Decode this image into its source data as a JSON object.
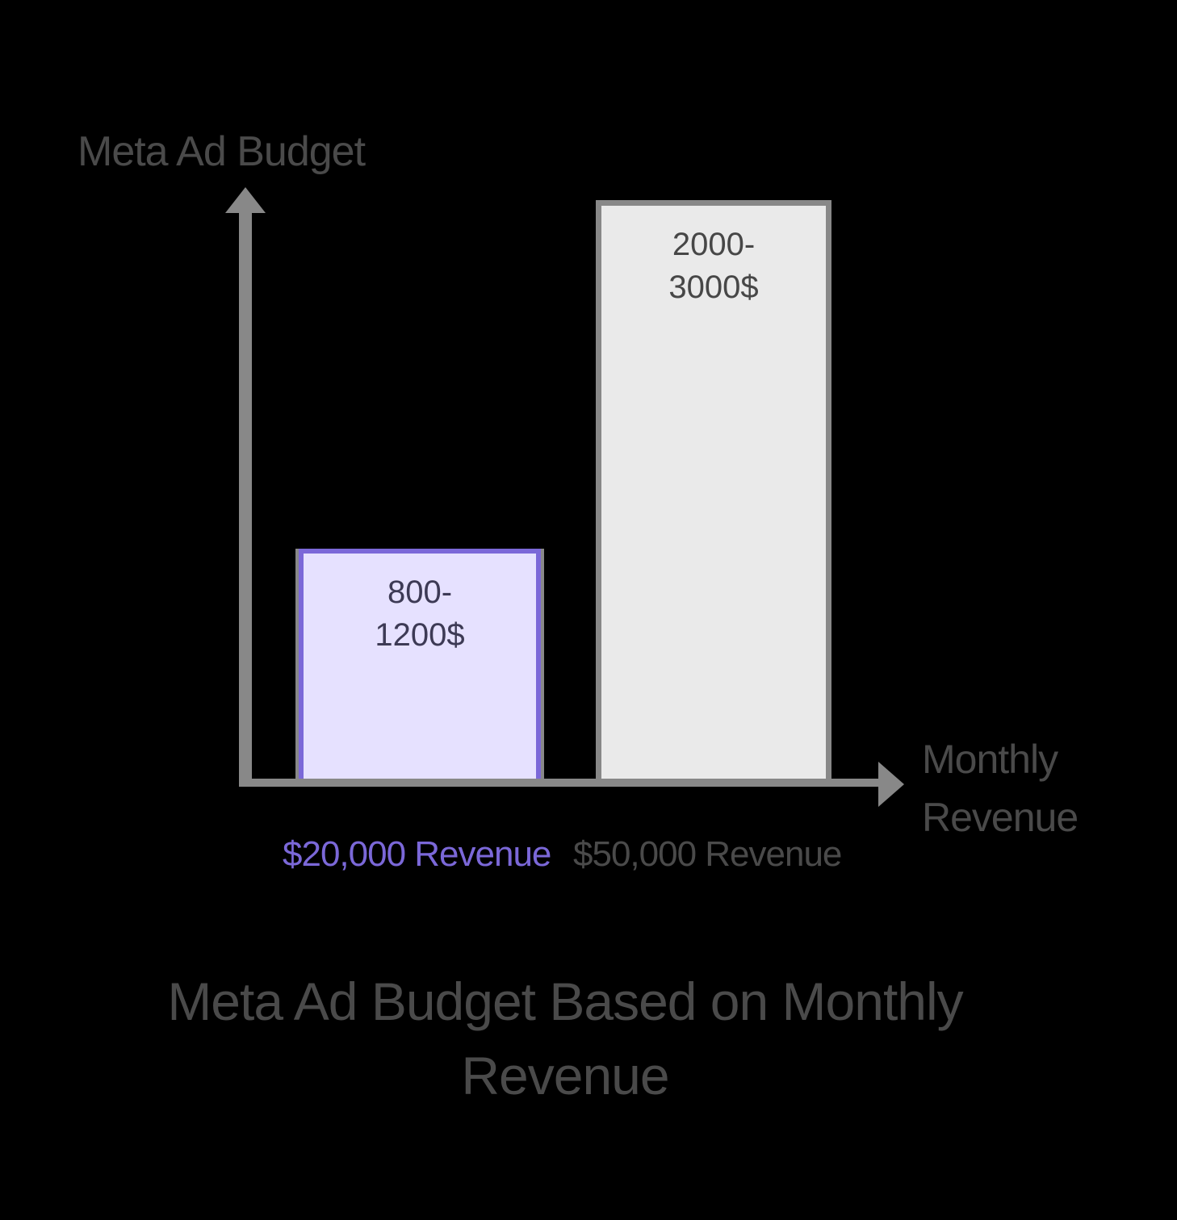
{
  "chart_data": {
    "type": "bar",
    "title": "Meta Ad Budget Based on Monthly Revenue",
    "xlabel": "Monthly Revenue",
    "ylabel": "Meta Ad Budget",
    "categories": [
      "$20,000 Revenue",
      "$50,000 Revenue"
    ],
    "series": [
      {
        "name": "Meta Ad Budget",
        "values": [
          1000,
          2500
        ],
        "ranges": [
          [
            800,
            1200
          ],
          [
            2000,
            3000
          ]
        ],
        "labels": [
          "800-1200$",
          "2000-3000$"
        ]
      }
    ],
    "colors": [
      "#7B68D8",
      "#888888"
    ],
    "fills": [
      "#E6E1FF",
      "#EAEAEA"
    ],
    "grid": false,
    "legend": "none"
  },
  "axes": {
    "y_label": "Meta Ad Budget",
    "x_label_line1": "Monthly",
    "x_label_line2": "Revenue"
  },
  "bars": [
    {
      "label_line1": "800-",
      "label_line2": "1200$",
      "category": "$20,000 Revenue"
    },
    {
      "label_line1": "2000-",
      "label_line2": "3000$",
      "category": "$50,000 Revenue"
    }
  ],
  "title": {
    "line1": "Meta Ad Budget Based on Monthly",
    "line2": "Revenue"
  }
}
